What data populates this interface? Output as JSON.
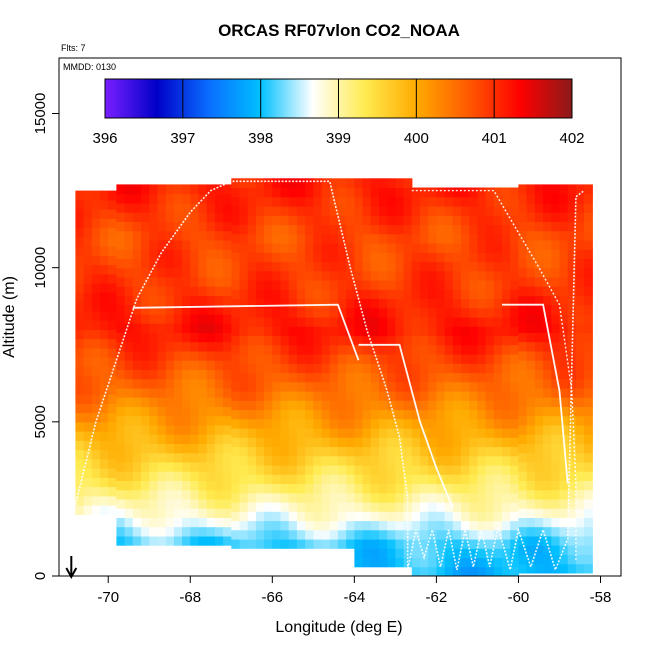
{
  "chart_data": {
    "type": "heatmap",
    "title": "ORCAS RF07vlon CO2_NOAA",
    "note_flights": "Flts: 7",
    "note_date": "MMDD: 0130",
    "xlabel": "Longitude (deg E)",
    "ylabel": "Altitude (m)",
    "xlim": [
      -71.2,
      -57.5
    ],
    "ylim": [
      0,
      16800
    ],
    "x_ticks": [
      -70,
      -68,
      -66,
      -64,
      -62,
      -60,
      -58
    ],
    "y_ticks": [
      0,
      5000,
      10000,
      15000
    ],
    "colorbar": {
      "label_values": [
        396,
        397,
        398,
        399,
        400,
        401,
        402
      ],
      "min": 396,
      "max": 402,
      "colors": [
        "#7a1fff",
        "#0000c8",
        "#0a6dff",
        "#00c0ff",
        "#ffffff",
        "#ffeb50",
        "#ffaa00",
        "#ff5a00",
        "#ff0000",
        "#8b1a1a"
      ]
    },
    "profile_columns": [
      {
        "lon_west": -70.8,
        "alt_low": 2000,
        "alt_high": 12300
      },
      {
        "lon_west": -69.9,
        "alt_low": 1000,
        "alt_high": 12700
      },
      {
        "lon_west": -67.0,
        "alt_low": 900,
        "alt_high": 12900
      },
      {
        "lon_west": -64.0,
        "alt_low": 300,
        "alt_high": 12800
      },
      {
        "lon_west": -62.6,
        "alt_low": 0,
        "alt_high": 12600
      },
      {
        "lon_west": -60.0,
        "alt_low": 100,
        "alt_high": 12500
      }
    ],
    "layers": [
      {
        "alt": 12500,
        "co2": 401.1
      },
      {
        "alt": 11000,
        "co2": 400.8
      },
      {
        "alt": 9500,
        "co2": 400.9
      },
      {
        "alt": 8000,
        "co2": 401.2
      },
      {
        "alt": 7000,
        "co2": 400.8
      },
      {
        "alt": 6000,
        "co2": 400.5
      },
      {
        "alt": 5000,
        "co2": 400.1
      },
      {
        "alt": 4000,
        "co2": 399.7
      },
      {
        "alt": 3000,
        "co2": 399.3
      },
      {
        "alt": 2000,
        "co2": 398.8
      },
      {
        "alt": 1000,
        "co2": 398.1
      },
      {
        "alt": 0,
        "co2": 397.9
      }
    ],
    "flight_track": [
      [
        -70.8,
        2300
      ],
      [
        -70.3,
        5000
      ],
      [
        -69.8,
        7000
      ],
      [
        -69.3,
        9000
      ],
      [
        -68.7,
        10500
      ],
      [
        -68.0,
        11800
      ],
      [
        -67.5,
        12500
      ],
      [
        -67.0,
        12800
      ],
      [
        -64.6,
        12800
      ],
      [
        -64.1,
        10000
      ],
      [
        -63.7,
        8000
      ],
      [
        -63.2,
        6000
      ],
      [
        -62.9,
        4500
      ],
      [
        -62.7,
        2500
      ],
      [
        -62.7,
        200
      ],
      [
        -62.5,
        1500
      ],
      [
        -62.3,
        600
      ],
      [
        -62.1,
        1500
      ],
      [
        -61.9,
        300
      ],
      [
        -61.7,
        1500
      ],
      [
        -61.5,
        200
      ],
      [
        -61.3,
        1500
      ],
      [
        -61.1,
        300
      ],
      [
        -60.9,
        1500
      ],
      [
        -60.7,
        300
      ],
      [
        -60.5,
        1600
      ],
      [
        -60.2,
        200
      ],
      [
        -60.0,
        1500
      ],
      [
        -59.7,
        300
      ],
      [
        -59.4,
        1500
      ],
      [
        -59.1,
        200
      ],
      [
        -58.8,
        1200
      ],
      [
        -58.6,
        12300
      ],
      [
        -58.4,
        12500
      ]
    ],
    "flight_track_2": [
      [
        -62.6,
        12500
      ],
      [
        -60.6,
        12500
      ],
      [
        -59.5,
        10000
      ],
      [
        -59.0,
        8800
      ],
      [
        -58.7,
        6000
      ],
      [
        -58.6,
        3000
      ],
      [
        -58.6,
        500
      ]
    ],
    "leg_lines": [
      [
        [
          -69.4,
          8700
        ],
        [
          -64.4,
          8800
        ],
        [
          -63.9,
          7000
        ]
      ],
      [
        [
          -63.9,
          7500
        ],
        [
          -62.9,
          7500
        ],
        [
          -62.4,
          5000
        ],
        [
          -62.0,
          3500
        ],
        [
          -61.6,
          2200
        ]
      ],
      [
        [
          -60.4,
          8800
        ],
        [
          -59.4,
          8800
        ],
        [
          -59.0,
          6000
        ],
        [
          -58.8,
          3000
        ]
      ]
    ],
    "arrow_lon": -70.9
  }
}
